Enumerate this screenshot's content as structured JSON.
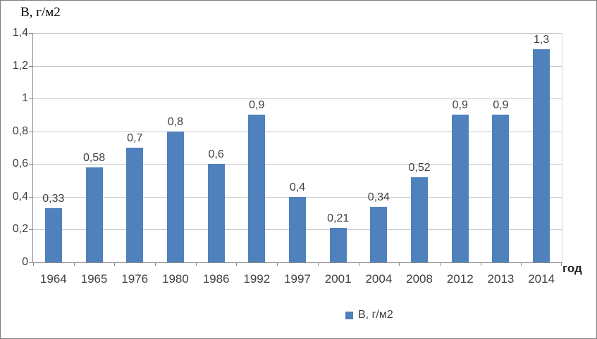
{
  "chart_data": {
    "type": "bar",
    "title": "",
    "y_axis_title": "В, г/м2",
    "x_axis_title": "год",
    "categories": [
      "1964",
      "1965",
      "1976",
      "1980",
      "1986",
      "1992",
      "1997",
      "2001",
      "2004",
      "2008",
      "2012",
      "2013",
      "2014"
    ],
    "values": [
      0.33,
      0.58,
      0.7,
      0.8,
      0.6,
      0.9,
      0.4,
      0.21,
      0.34,
      0.52,
      0.9,
      0.9,
      1.3
    ],
    "value_labels": [
      "0,33",
      "0,58",
      "0,7",
      "0,8",
      "0,6",
      "0,9",
      "0,4",
      "0,21",
      "0,34",
      "0,52",
      "0,9",
      "0,9",
      "1,3"
    ],
    "y_tick_labels": [
      "0",
      "0,2",
      "0,4",
      "0,6",
      "0,8",
      "1",
      "1,2",
      "1,4"
    ],
    "ylim": [
      0,
      1.4
    ],
    "grid": true,
    "legend": {
      "position": "bottom",
      "entries": [
        {
          "label": "В, г/м2",
          "color": "#4f81bd"
        }
      ]
    }
  },
  "colors": {
    "bar": "#4f81bd",
    "gridline": "#c9c9c9",
    "axis": "#8c8c8c",
    "text": "#3f3f3f",
    "border": "#7f7f7f"
  }
}
